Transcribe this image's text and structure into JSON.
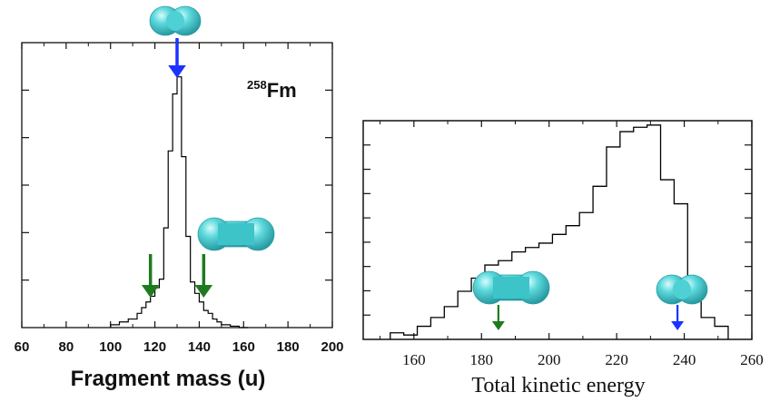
{
  "chart_data": [
    {
      "type": "histogram",
      "label": "258Fm",
      "label_mass_number": "258",
      "label_element": "Fm",
      "xlabel": "Fragment mass (u)",
      "ylabel": "",
      "xlim": [
        60,
        200
      ],
      "x_ticks": [
        60,
        80,
        100,
        120,
        140,
        160,
        180,
        200
      ],
      "ylim": [
        0,
        1.0
      ],
      "bin_edges": [
        100,
        104,
        108,
        112,
        114,
        116,
        118,
        120,
        122,
        124,
        126,
        128,
        130,
        132,
        134,
        136,
        138,
        140,
        142,
        144,
        146,
        148,
        150,
        154,
        158,
        162
      ],
      "values": [
        0.01,
        0.02,
        0.03,
        0.05,
        0.07,
        0.09,
        0.11,
        0.14,
        0.17,
        0.35,
        0.62,
        0.82,
        0.88,
        0.6,
        0.32,
        0.16,
        0.12,
        0.09,
        0.06,
        0.05,
        0.03,
        0.02,
        0.01,
        0.005,
        0.0
      ],
      "arrows": [
        {
          "x": 130,
          "color": "#1a33ff",
          "shape": "compact"
        },
        {
          "x": 118,
          "color": "#1f7a1f",
          "shape": "elongated"
        },
        {
          "x": 142,
          "color": "#1f7a1f",
          "shape": "elongated"
        }
      ]
    },
    {
      "type": "histogram",
      "xlabel": "Total kinetic energy",
      "ylabel": "",
      "xlim": [
        145,
        260
      ],
      "x_ticks": [
        160,
        180,
        200,
        220,
        240,
        260
      ],
      "ylim": [
        0,
        1.0
      ],
      "bin_edges": [
        153,
        157,
        161,
        165,
        169,
        173,
        177,
        181,
        185,
        189,
        193,
        197,
        201,
        205,
        209,
        213,
        217,
        221,
        225,
        229,
        233,
        237,
        241,
        245,
        249,
        253
      ],
      "values": [
        0.03,
        0.02,
        0.06,
        0.1,
        0.15,
        0.22,
        0.28,
        0.34,
        0.36,
        0.4,
        0.42,
        0.44,
        0.48,
        0.52,
        0.58,
        0.7,
        0.88,
        0.95,
        0.97,
        0.98,
        0.73,
        0.62,
        0.24,
        0.1,
        0.06
      ],
      "arrows": [
        {
          "x": 185,
          "color": "#1f7a1f",
          "shape": "elongated"
        },
        {
          "x": 238,
          "color": "#1a33ff",
          "shape": "compact"
        }
      ]
    }
  ],
  "colors": {
    "blue_arrow": "#1a33ff",
    "green_arrow": "#1f7a1f",
    "nucleus": "#3fc8cc",
    "axis": "#111111",
    "histogram_line": "#000000"
  }
}
